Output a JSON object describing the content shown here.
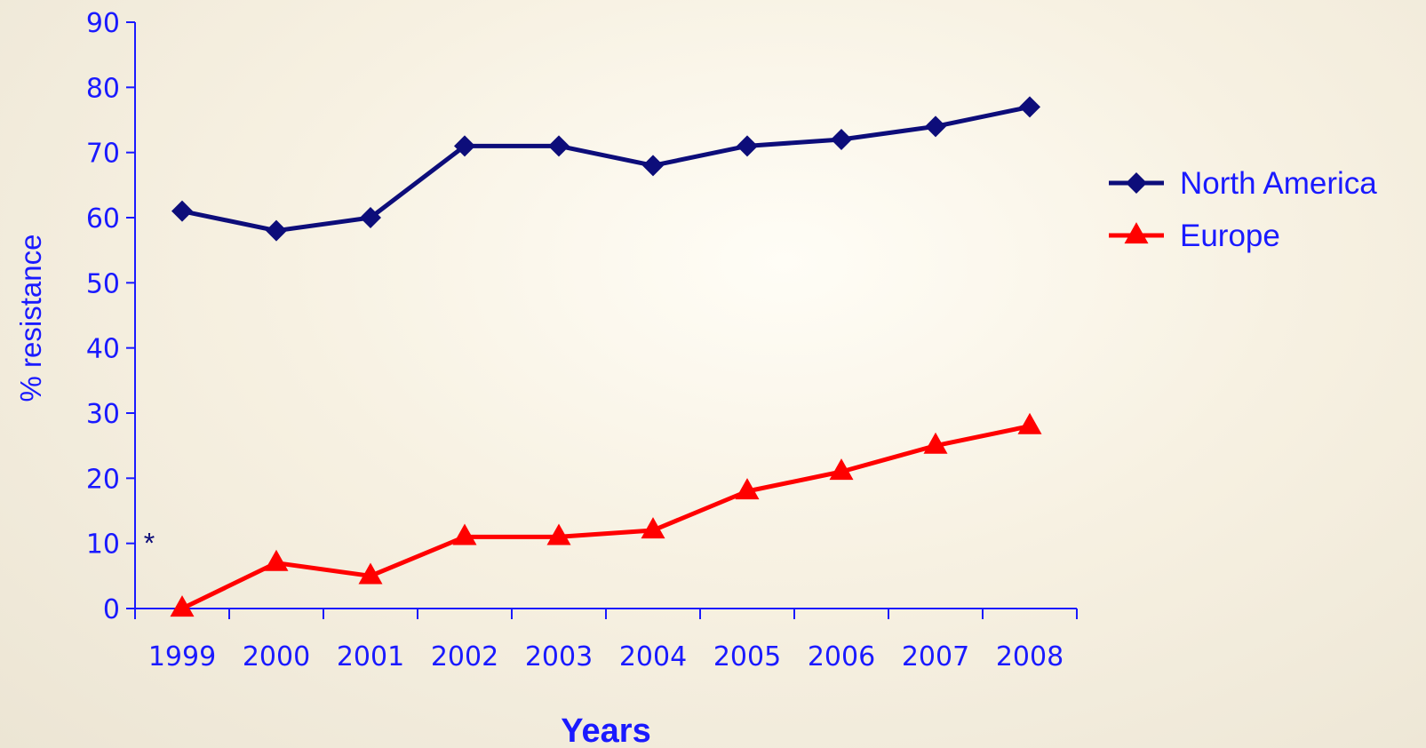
{
  "colors": {
    "axis": "#1a1aff",
    "north_america": "#0d0d7a",
    "europe": "#ff0000",
    "legend_text": "#1a1aff"
  },
  "chart_data": {
    "type": "line",
    "title": "",
    "xlabel": "Years",
    "ylabel": "% resistance",
    "categories": [
      "1999",
      "2000",
      "2001",
      "2002",
      "2003",
      "2004",
      "2005",
      "2006",
      "2007",
      "2008"
    ],
    "ylim": [
      0,
      90
    ],
    "yticks": [
      "0",
      "10",
      "20",
      "30",
      "40",
      "50",
      "60",
      "70",
      "80",
      "90"
    ],
    "grid": false,
    "legend_position": "right",
    "annotation": "*",
    "series": [
      {
        "name": "North America",
        "marker": "diamond",
        "values": [
          61,
          58,
          60,
          71,
          71,
          68,
          71,
          72,
          74,
          77
        ]
      },
      {
        "name": "Europe",
        "marker": "triangle",
        "values": [
          0,
          7,
          5,
          11,
          11,
          12,
          18,
          21,
          25,
          28
        ]
      }
    ]
  }
}
